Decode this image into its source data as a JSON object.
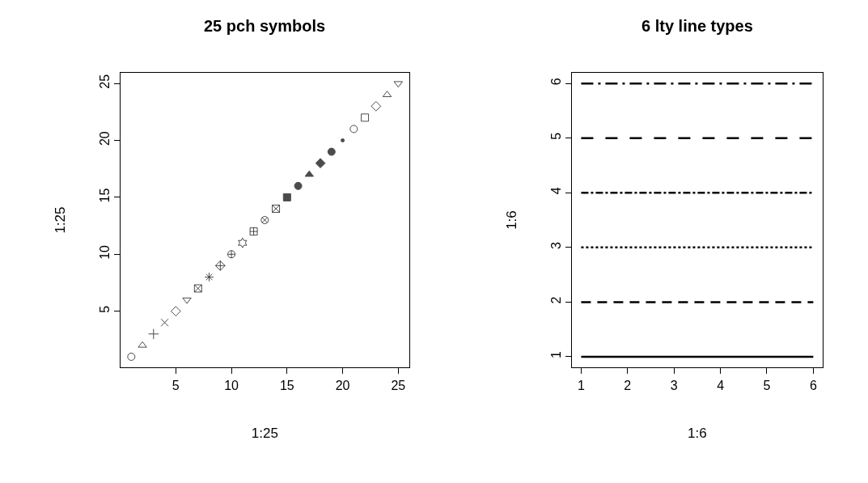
{
  "chart_data": [
    {
      "type": "scatter",
      "title": "25 pch symbols",
      "xlabel": "1:25",
      "ylabel": "1:25",
      "x": [
        1,
        2,
        3,
        4,
        5,
        6,
        7,
        8,
        9,
        10,
        11,
        12,
        13,
        14,
        15,
        16,
        17,
        18,
        19,
        20,
        21,
        22,
        23,
        24,
        25
      ],
      "series": [
        {
          "color": "#000000",
          "values": [
            1,
            2,
            3,
            4,
            5,
            6,
            7,
            8,
            9,
            10,
            11,
            12,
            13,
            14,
            15,
            16,
            17,
            18,
            19,
            20,
            21,
            22,
            23,
            24,
            25
          ]
        }
      ],
      "marker": [
        "circle-open",
        "triangle-up-open",
        "cross-thin",
        "x-thin",
        "diamond-open",
        "triangle-down-open",
        "square-x-open",
        "asterisk",
        "diamond-cross-open",
        "circle-cross-open",
        "hexagram-open",
        "square-cross-open",
        "circle-x-open",
        "square-x-open",
        "square",
        "circle",
        "triangle-up",
        "diamond",
        "circle",
        "circle-small",
        "circle-open",
        "square-open",
        "diamond-open",
        "triangle-up-open",
        "triangle-down-open"
      ],
      "xlim": [
        0.04,
        25.96
      ],
      "ylim": [
        0.04,
        25.96
      ],
      "xticks": [
        5,
        10,
        15,
        20,
        25
      ],
      "yticks": [
        5,
        10,
        15,
        20,
        25
      ]
    },
    {
      "type": "line",
      "title": "6 lty line types",
      "xlabel": "1:6",
      "ylabel": "1:6",
      "x": [
        1,
        6
      ],
      "series": [
        {
          "color": "#000000",
          "values": [
            1,
            1
          ],
          "line_style": "solid"
        },
        {
          "color": "#000000",
          "values": [
            2,
            2
          ],
          "line_style": "dashed"
        },
        {
          "color": "#000000",
          "values": [
            3,
            3
          ],
          "line_style": "dotted"
        },
        {
          "color": "#000000",
          "values": [
            4,
            4
          ],
          "line_style": "dashdot"
        },
        {
          "color": "#000000",
          "values": [
            5,
            5
          ],
          "line_style": "longdash"
        },
        {
          "color": "#000000",
          "values": [
            6,
            6
          ],
          "line_style": "longdashdot"
        }
      ],
      "xlim": [
        0.8,
        6.2
      ],
      "ylim": [
        0.8,
        6.2
      ],
      "xticks": [
        1,
        2,
        3,
        4,
        5,
        6
      ],
      "yticks": [
        1,
        2,
        3,
        4,
        5,
        6
      ],
      "marker": "none"
    }
  ]
}
